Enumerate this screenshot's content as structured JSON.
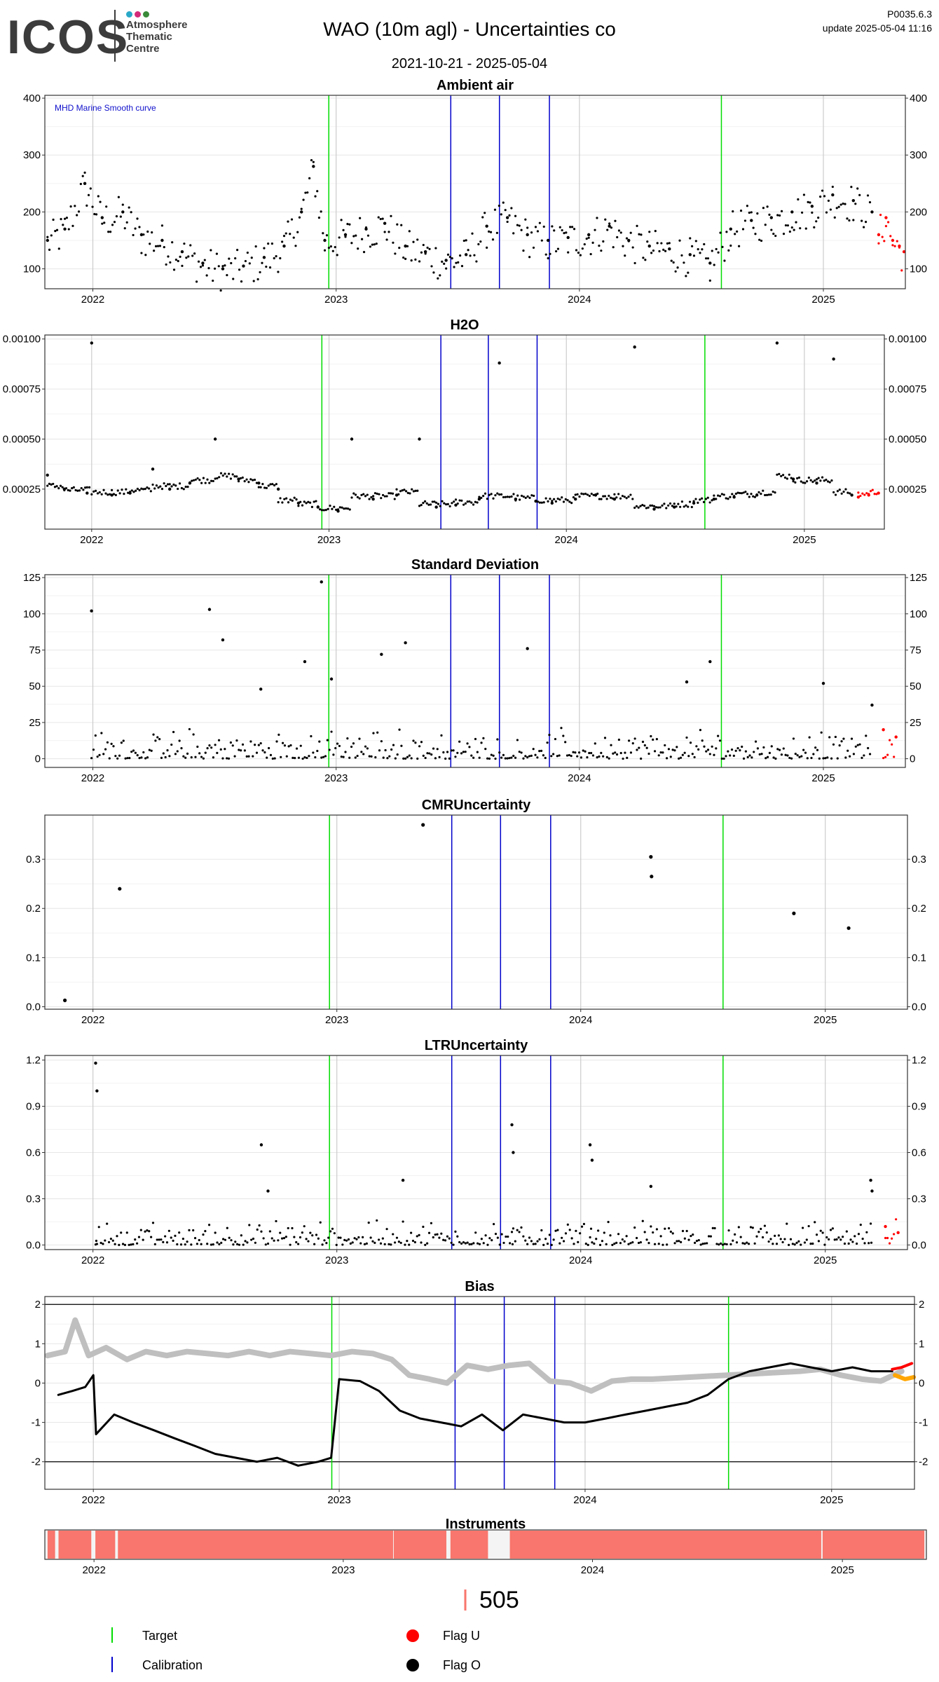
{
  "header": {
    "logo": "ICOS",
    "logo_subtitle": [
      "Atmosphere",
      "Thematic",
      "Centre"
    ],
    "title": "WAO  (10m agl) - Uncertainties co",
    "date_range": "2021-10-21 - 2025-05-04",
    "version": "P0035.6.3",
    "update": "update  2025-05-04 11:16"
  },
  "colors": {
    "target": "#00dd00",
    "calibration": "#0000cc",
    "flag_u": "#ff0000",
    "flag_o": "#000000",
    "bias_gray": "#bfbfbf",
    "bias_orange": "#ffa500",
    "instrument": "#f8766d"
  },
  "chart_data": [
    {
      "type": "scatter",
      "title": "Ambient air",
      "annotation": "MHD Marine Smooth curve",
      "x_start": "2021-10-21",
      "x_end": "2025-05-04",
      "ylim": [
        65,
        405
      ],
      "yticks": [
        100,
        200,
        300,
        400
      ],
      "xticks": [
        "2022",
        "2023",
        "2024",
        "2025"
      ],
      "target_lines": [
        "2022-12-21",
        "2024-08-01"
      ],
      "calibration_lines": [
        "2023-06-22",
        "2023-09-03",
        "2023-11-17"
      ],
      "grid": true,
      "series": [
        {
          "name": "Flag O",
          "x": [
            "2021-10-25",
            "2021-11-20",
            "2021-12-20",
            "2022-01-15",
            "2022-02-15",
            "2022-03-15",
            "2022-04-15",
            "2022-05-15",
            "2022-06-15",
            "2022-07-15",
            "2022-08-15",
            "2022-09-15",
            "2022-10-15",
            "2022-11-10",
            "2022-11-28",
            "2022-12-15",
            "2023-01-15",
            "2023-02-15",
            "2023-03-15",
            "2023-04-15",
            "2023-05-15",
            "2023-06-15",
            "2023-07-15",
            "2023-08-15",
            "2023-09-15",
            "2023-10-15",
            "2023-11-15",
            "2023-12-15",
            "2024-01-15",
            "2024-02-15",
            "2024-03-15",
            "2024-04-15",
            "2024-05-15",
            "2024-06-15",
            "2024-07-15",
            "2024-08-15",
            "2024-09-15",
            "2024-10-15",
            "2024-11-15",
            "2024-12-15",
            "2025-01-15",
            "2025-02-15",
            "2025-03-15"
          ],
          "y": [
            150,
            170,
            250,
            190,
            200,
            160,
            150,
            130,
            110,
            100,
            105,
            120,
            140,
            200,
            280,
            150,
            160,
            170,
            180,
            140,
            130,
            115,
            125,
            175,
            190,
            160,
            150,
            155,
            160,
            175,
            150,
            140,
            135,
            125,
            110,
            170,
            185,
            190,
            200,
            210,
            230,
            220,
            200
          ]
        },
        {
          "name": "Flag U",
          "x": [
            "2025-03-25",
            "2025-04-05",
            "2025-04-15",
            "2025-04-25",
            "2025-05-02"
          ],
          "y": [
            160,
            190,
            150,
            140,
            130
          ]
        }
      ]
    },
    {
      "type": "scatter",
      "title": "H2O",
      "x_start": "2021-10-21",
      "x_end": "2025-05-04",
      "ylim": [
        5e-05,
        0.00102
      ],
      "yticks": [
        0.00025,
        0.0005,
        0.00075,
        0.001
      ],
      "ytick_labels": [
        "0.00025",
        "0.00050",
        "0.00075",
        "0.00100"
      ],
      "xticks": [
        "2022",
        "2023",
        "2024",
        "2025"
      ],
      "target_lines": [
        "2022-12-21",
        "2024-08-01"
      ],
      "calibration_lines": [
        "2023-06-22",
        "2023-09-03",
        "2023-11-17"
      ],
      "grid": true,
      "series": [
        {
          "name": "Flag O",
          "x": [
            "2021-10-25",
            "2021-11-20",
            "2021-12-25",
            "2022-01-01",
            "2022-02-01",
            "2022-03-01",
            "2022-04-05",
            "2022-05-01",
            "2022-06-01",
            "2022-07-10",
            "2022-08-15",
            "2022-09-15",
            "2022-10-15",
            "2022-11-15",
            "2022-12-15",
            "2023-01-15",
            "2023-02-05",
            "2023-03-10",
            "2023-04-15",
            "2023-05-20",
            "2023-06-15",
            "2023-07-15",
            "2023-08-20",
            "2023-09-20",
            "2023-10-15",
            "2023-11-15",
            "2023-12-10",
            "2024-01-15",
            "2024-02-15",
            "2024-03-15",
            "2024-04-15",
            "2024-05-15",
            "2024-06-15",
            "2024-07-15",
            "2024-08-15",
            "2024-09-15",
            "2024-10-20",
            "2024-11-20",
            "2024-12-15",
            "2025-01-20",
            "2025-02-15",
            "2025-03-15"
          ],
          "y": [
            0.00032,
            0.00025,
            0.00023,
            0.00098,
            0.00022,
            0.00023,
            0.00035,
            0.00025,
            0.00028,
            0.0005,
            0.0003,
            0.00028,
            0.00025,
            0.00018,
            0.00016,
            0.00014,
            0.0005,
            0.0002,
            0.00022,
            0.0005,
            0.00016,
            0.00017,
            0.0002,
            0.00088,
            0.0002,
            0.00019,
            0.00018,
            0.0002,
            0.00022,
            0.0002,
            0.00096,
            0.00015,
            0.00016,
            0.00018,
            0.0002,
            0.00021,
            0.00022,
            0.00098,
            0.0003,
            0.00028,
            0.0009,
            0.00022
          ]
        },
        {
          "name": "Flag U",
          "x": [
            "2025-03-25",
            "2025-04-10",
            "2025-04-25"
          ],
          "y": [
            0.00021,
            0.00022,
            0.00023
          ]
        }
      ]
    },
    {
      "type": "scatter",
      "title": "Standard Deviation",
      "x_start": "2021-10-21",
      "x_end": "2025-05-04",
      "ylim": [
        -6,
        127
      ],
      "yticks": [
        0,
        25,
        50,
        75,
        100,
        125
      ],
      "xticks": [
        "2022",
        "2023",
        "2024",
        "2025"
      ],
      "target_lines": [
        "2022-12-21",
        "2024-08-01"
      ],
      "calibration_lines": [
        "2023-06-22",
        "2023-09-03",
        "2023-11-17"
      ],
      "grid": true,
      "series": [
        {
          "name": "Flag O",
          "x": [
            "2021-12-30",
            "2022-06-25",
            "2022-07-15",
            "2022-09-10",
            "2022-11-15",
            "2022-12-10",
            "2022-12-25",
            "2023-03-10",
            "2023-04-15",
            "2023-10-15",
            "2024-06-10",
            "2024-07-15",
            "2025-01-01",
            "2025-03-15"
          ],
          "y": [
            102,
            103,
            82,
            48,
            67,
            122,
            55,
            72,
            80,
            76,
            53,
            67,
            52,
            37
          ]
        },
        {
          "name": "Flag U",
          "x": [
            "2025-04-01",
            "2025-04-20"
          ],
          "y": [
            20,
            15
          ]
        }
      ]
    },
    {
      "type": "scatter",
      "title": "CMRUncertainty",
      "x_start": "2021-10-21",
      "x_end": "2025-05-04",
      "ylim": [
        -0.005,
        0.39
      ],
      "yticks": [
        0,
        0.1,
        0.2,
        0.3
      ],
      "ytick_labels": [
        "0.0",
        "0.1",
        "0.2",
        "0.3"
      ],
      "xticks": [
        "2022",
        "2023",
        "2024",
        "2025"
      ],
      "target_lines": [
        "2022-12-21",
        "2024-08-01"
      ],
      "calibration_lines": [
        "2023-06-22",
        "2023-09-03",
        "2023-11-17"
      ],
      "grid": true,
      "series": [
        {
          "name": "Flag O",
          "x": [
            "2021-11-20",
            "2022-02-10",
            "2023-05-10",
            "2024-04-15",
            "2024-04-16",
            "2024-11-15",
            "2025-02-05"
          ],
          "y": [
            0.013,
            0.24,
            0.37,
            0.305,
            0.265,
            0.19,
            0.16
          ]
        }
      ]
    },
    {
      "type": "scatter",
      "title": "LTRUncertainty",
      "x_start": "2021-10-21",
      "x_end": "2025-05-04",
      "ylim": [
        -0.03,
        1.23
      ],
      "yticks": [
        0,
        0.3,
        0.6,
        0.9,
        1.2
      ],
      "ytick_labels": [
        "0.0",
        "0.3",
        "0.6",
        "0.9",
        "1.2"
      ],
      "xticks": [
        "2022",
        "2023",
        "2024",
        "2025"
      ],
      "target_lines": [
        "2022-12-21",
        "2024-08-01"
      ],
      "calibration_lines": [
        "2023-06-22",
        "2023-09-03",
        "2023-11-17"
      ],
      "grid": true,
      "series": [
        {
          "name": "Flag O",
          "x": [
            "2022-01-05",
            "2022-01-07",
            "2022-09-10",
            "2022-09-20",
            "2023-04-10",
            "2023-09-20",
            "2023-09-22",
            "2024-01-15",
            "2024-01-18",
            "2024-04-15",
            "2025-03-10",
            "2025-03-12"
          ],
          "y": [
            1.18,
            1.0,
            0.65,
            0.35,
            0.42,
            0.78,
            0.6,
            0.65,
            0.55,
            0.38,
            0.42,
            0.35
          ]
        },
        {
          "name": "Flag U",
          "x": [
            "2025-04-01",
            "2025-04-20"
          ],
          "y": [
            0.12,
            0.08
          ]
        }
      ]
    },
    {
      "type": "line",
      "title": "Bias",
      "x_start": "2021-10-21",
      "x_end": "2025-05-04",
      "ylim": [
        -2.7,
        2.2
      ],
      "yticks": [
        -2,
        -1,
        0,
        1,
        2
      ],
      "xticks": [
        "2022",
        "2023",
        "2024",
        "2025"
      ],
      "hlines": [
        -2,
        2
      ],
      "target_lines": [
        "2022-12-21",
        "2024-08-01"
      ],
      "calibration_lines": [
        "2023-06-22",
        "2023-09-03",
        "2023-11-17"
      ],
      "grid": true,
      "series": [
        {
          "name": "gray",
          "x": [
            "2021-10-25",
            "2021-11-20",
            "2021-12-05",
            "2021-12-25",
            "2022-01-20",
            "2022-02-20",
            "2022-03-20",
            "2022-04-20",
            "2022-05-20",
            "2022-06-20",
            "2022-07-20",
            "2022-08-20",
            "2022-09-20",
            "2022-10-20",
            "2022-11-20",
            "2022-12-20",
            "2023-01-20",
            "2023-02-20",
            "2023-03-20",
            "2023-04-15",
            "2023-05-15",
            "2023-06-10",
            "2023-07-10",
            "2023-08-10",
            "2023-09-10",
            "2023-10-10",
            "2023-11-10",
            "2023-12-10",
            "2024-01-10",
            "2024-02-10",
            "2024-03-10",
            "2024-04-10",
            "2024-11-15",
            "2024-12-15",
            "2025-01-15",
            "2025-02-15",
            "2025-03-15",
            "2025-04-15"
          ],
          "y": [
            0.7,
            0.8,
            1.6,
            0.7,
            0.9,
            0.6,
            0.8,
            0.7,
            0.8,
            0.75,
            0.7,
            0.8,
            0.7,
            0.8,
            0.75,
            0.7,
            0.8,
            0.75,
            0.6,
            0.2,
            0.1,
            0.0,
            0.45,
            0.35,
            0.45,
            0.5,
            0.05,
            0.0,
            -0.2,
            0.05,
            0.1,
            0.1,
            0.3,
            0.35,
            0.2,
            0.1,
            0.05,
            0.3
          ]
        },
        {
          "name": "black",
          "x": [
            "2021-11-10",
            "2021-12-01",
            "2021-12-20",
            "2022-01-01",
            "2022-01-05",
            "2022-02-01",
            "2022-03-01",
            "2022-04-01",
            "2022-05-01",
            "2022-06-01",
            "2022-07-01",
            "2022-08-01",
            "2022-09-01",
            "2022-10-01",
            "2022-11-01",
            "2022-12-01",
            "2022-12-20",
            "2023-01-01",
            "2023-02-01",
            "2023-03-01",
            "2023-04-01",
            "2023-05-01",
            "2023-06-01",
            "2023-07-01",
            "2023-08-01",
            "2023-09-01",
            "2023-10-01",
            "2023-11-01",
            "2023-12-01",
            "2024-01-01",
            "2024-02-01",
            "2024-03-01",
            "2024-04-01",
            "2024-05-01",
            "2024-06-01",
            "2024-07-01",
            "2024-08-01",
            "2024-09-01",
            "2024-10-01",
            "2024-11-01",
            "2024-12-01",
            "2025-01-01",
            "2025-02-01",
            "2025-03-01",
            "2025-04-01"
          ],
          "y": [
            -0.3,
            -0.2,
            -0.1,
            0.2,
            -1.3,
            -0.8,
            -1.0,
            -1.2,
            -1.4,
            -1.6,
            -1.8,
            -1.9,
            -2.0,
            -1.9,
            -2.1,
            -2.0,
            -1.9,
            0.1,
            0.05,
            -0.2,
            -0.7,
            -0.9,
            -1.0,
            -1.1,
            -0.8,
            -1.2,
            -0.8,
            -0.9,
            -1.0,
            -1.0,
            -0.9,
            -0.8,
            -0.7,
            -0.6,
            -0.5,
            -0.3,
            0.1,
            0.3,
            0.4,
            0.5,
            0.4,
            0.3,
            0.4,
            0.3,
            0.3
          ]
        },
        {
          "name": "Flag U",
          "x": [
            "2025-04-01",
            "2025-04-15",
            "2025-04-30"
          ],
          "y": [
            0.35,
            0.4,
            0.5
          ]
        },
        {
          "name": "orange",
          "x": [
            "2025-04-05",
            "2025-04-20",
            "2025-05-03"
          ],
          "y": [
            0.2,
            0.1,
            0.15
          ]
        }
      ]
    },
    {
      "type": "bar",
      "title": "Instruments",
      "x_start": "2021-10-21",
      "x_end": "2025-05-04",
      "xticks": [
        "2022",
        "2023",
        "2024",
        "2025"
      ],
      "segments": [
        {
          "start": "2021-10-25",
          "end": "2021-11-05"
        },
        {
          "start": "2021-11-10",
          "end": "2021-12-28"
        },
        {
          "start": "2022-01-03",
          "end": "2022-02-01"
        },
        {
          "start": "2022-02-05",
          "end": "2023-03-15"
        },
        {
          "start": "2023-03-16",
          "end": "2023-06-01"
        },
        {
          "start": "2023-06-07",
          "end": "2023-08-01"
        },
        {
          "start": "2023-09-02",
          "end": "2024-12-01"
        },
        {
          "start": "2024-12-03",
          "end": "2025-05-01"
        }
      ],
      "value": 505
    }
  ],
  "legend": {
    "target": "Target",
    "calibration": "Calibration",
    "flag_u": "Flag U",
    "flag_o": "Flag O"
  }
}
